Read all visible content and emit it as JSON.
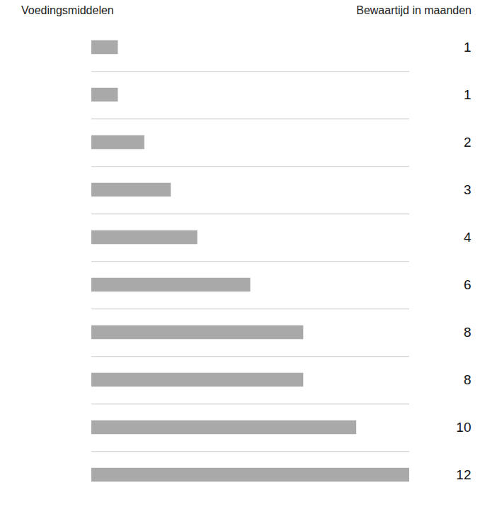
{
  "chart_data": {
    "type": "bar",
    "orientation": "horizontal",
    "ylabel": "Voedingsmiddelen",
    "xlabel": "Bewaartijd in maanden",
    "categories": [
      null,
      null,
      null,
      null,
      null,
      null,
      null,
      null,
      null,
      null
    ],
    "values": [
      1,
      1,
      2,
      3,
      4,
      6,
      8,
      8,
      10,
      12
    ],
    "color": "#a9a9a9",
    "xlim": [
      0,
      12
    ],
    "tick_labels": false,
    "data_labels": true
  }
}
